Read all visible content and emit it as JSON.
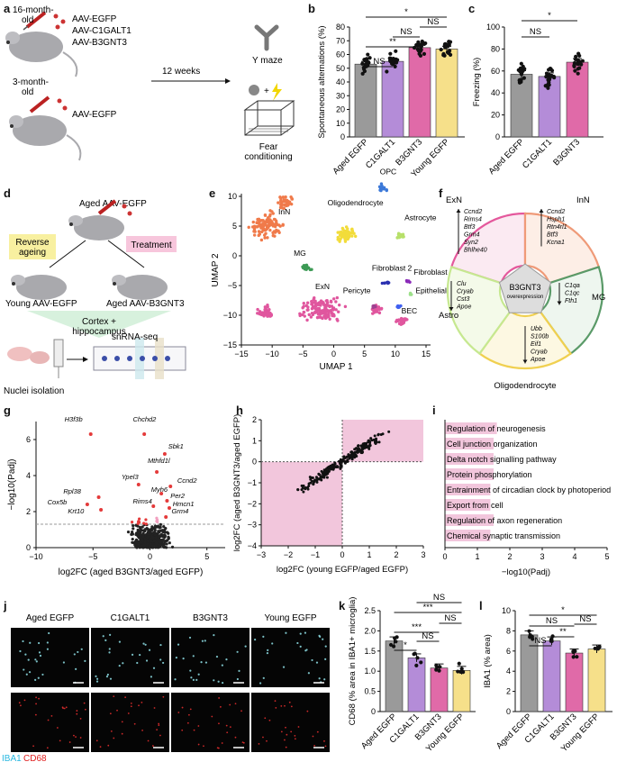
{
  "panels": [
    "a",
    "b",
    "c",
    "d",
    "e",
    "f",
    "g",
    "h",
    "i",
    "j",
    "k",
    "l"
  ],
  "a": {
    "old_label": "16-month-\nold",
    "old_viruses": [
      "AAV-EGFP",
      "AAV-C1GALT1",
      "AAV-B3GNT3"
    ],
    "young_label": "3-month-\nold",
    "young_virus": "AAV-EGFP",
    "time": "12 weeks",
    "test1": "Y maze",
    "test2": "Fear\nconditioning"
  },
  "b": {
    "ylabel": "Spontaneous alternations (%)",
    "yticks": [
      "0",
      "10",
      "20",
      "30",
      "40",
      "50",
      "60",
      "70",
      "80"
    ],
    "categories": [
      "Aged EGFP",
      "C1GALT1",
      "B3GNT3",
      "Young EGFP"
    ],
    "values": [
      53,
      55,
      65,
      64
    ],
    "colors": [
      "#9a9a9a",
      "#b48cd8",
      "#e06aa8",
      "#f6e08a"
    ],
    "sig": [
      "NS",
      "**",
      "NS",
      "*",
      "NS"
    ]
  },
  "c": {
    "ylabel": "Freezing (%)",
    "yticks": [
      "0",
      "20",
      "40",
      "60",
      "80",
      "100"
    ],
    "categories": [
      "Aged EGFP",
      "C1GALT1",
      "B3GNT3"
    ],
    "values": [
      57,
      55,
      68
    ],
    "colors": [
      "#9a9a9a",
      "#b48cd8",
      "#e06aa8"
    ],
    "sig": [
      "NS",
      "*"
    ]
  },
  "d": {
    "top": "Aged AAV-EGFP",
    "reverse": "Reverse\nageing",
    "treatment": "Treatment",
    "young": "Young AAV-EGFP",
    "treated": "Aged AAV-B3GNT3",
    "tissue": "Cortex +\nhippocampus",
    "nuclei": "Nuclei isolation",
    "seq": "snRNA-seq"
  },
  "e": {
    "xlabel": "UMAP 1",
    "ylabel": "UMAP 2",
    "xticks": [
      "−15",
      "−10",
      "−5",
      "0",
      "5",
      "10",
      "15"
    ],
    "yticks": [
      "−15",
      "−10",
      "−5",
      "0",
      "5",
      "10"
    ],
    "clusters": [
      "InN",
      "OPC",
      "Oligodendrocyte",
      "Astrocyte",
      "MG",
      "Fibroblast 2",
      "Fibroblast 1",
      "ExN",
      "Pericyte",
      "Epithelial",
      "BEC"
    ]
  },
  "f": {
    "center": "B3GNT3",
    "center_sub": "overexpression",
    "ExN": {
      "label": "ExN",
      "genes": [
        "Ccnd2",
        "Rims4",
        "Btf3",
        "Grm4",
        "Syn2",
        "Bhlhe40"
      ]
    },
    "InN": {
      "label": "InN",
      "genes": [
        "Ccnd2",
        "Hsph1",
        "Rtn4rl1",
        "Btf3",
        "Kcna1"
      ]
    },
    "MG": {
      "label": "MG",
      "genes": [
        "C1qa",
        "C1qc",
        "Fth1"
      ]
    },
    "Oligo": {
      "label": "Oligodendrocyte",
      "genes": [
        "Ubb",
        "S100b",
        "Eif1",
        "Cryab",
        "Apoe"
      ]
    },
    "Astro": {
      "label": "Astro",
      "genes": [
        "Clu",
        "Cryab",
        "Cst3",
        "Apoe"
      ]
    }
  },
  "g": {
    "ylabel": "−log10(Padj)",
    "xlabel": "log2FC (aged B3GNT3/aged EGFP)",
    "xticks": [
      "−10",
      "−5",
      "0",
      "5"
    ],
    "yticks": [
      "0",
      "2",
      "4",
      "6"
    ],
    "genes": [
      "H3f3b",
      "Chchd2",
      "Sbk1",
      "Mthfd1l",
      "Ypel3",
      "Ccnd2",
      "Myh6",
      "Per2",
      "Rims4",
      "Hmcn1",
      "Grm4",
      "Rpl38",
      "Cox5b",
      "Krt10"
    ]
  },
  "h": {
    "ylabel": "log2FC (aged B3GNT3/aged EGFP)",
    "xlabel": "log2FC (young EGFP/aged EGFP)",
    "xticks": [
      "−3",
      "−2",
      "−1",
      "0",
      "1",
      "2",
      "3"
    ],
    "yticks": [
      "−4",
      "−3",
      "−2",
      "−1",
      "0",
      "1",
      "2"
    ]
  },
  "i": {
    "terms": [
      "Regulation of neurogenesis",
      "Cell junction organization",
      "Delta notch signalling pathway",
      "Protein phosphorylation",
      "Entrainment of circadian clock by photoperiod",
      "Export from cell",
      "Regulation of axon regeneration",
      "Chemical synaptic transmission"
    ],
    "values": [
      1.6,
      1.5,
      1.5,
      1.5,
      1.4,
      1.4,
      1.5,
      1.4
    ],
    "xlabel": "−log10(Padj)",
    "xticks": [
      "0",
      "1",
      "2",
      "3",
      "4",
      "5"
    ]
  },
  "j": {
    "columns": [
      "Aged EGFP",
      "C1GALT1",
      "B3GNT3",
      "Young EGFP"
    ],
    "legend_a": "IBA1",
    "legend_b": "CD68"
  },
  "k": {
    "ylabel": "CD68 (% area in IBA1+ microglia)",
    "yticks": [
      "0",
      "0.5",
      "1.0",
      "1.5",
      "2.0",
      "2.5"
    ],
    "categories": [
      "Aged EGFP",
      "C1GALT1",
      "B3GNT3",
      "Young EGFP"
    ],
    "values": [
      1.75,
      1.33,
      1.08,
      1.02
    ],
    "colors": [
      "#9a9a9a",
      "#b48cd8",
      "#e06aa8",
      "#f6e08a"
    ],
    "sig": [
      "*",
      "NS",
      "***",
      "NS",
      "***",
      "NS"
    ]
  },
  "l": {
    "ylabel": "IBA1 (% area)",
    "yticks": [
      "0",
      "2",
      "4",
      "6",
      "8",
      "10"
    ],
    "categories": [
      "Aged EGFP",
      "C1GALT1",
      "B3GNT3",
      "Young EGFP"
    ],
    "values": [
      7.6,
      7.0,
      5.8,
      6.2
    ],
    "colors": [
      "#9a9a9a",
      "#b48cd8",
      "#e06aa8",
      "#f6e08a"
    ],
    "sig": [
      "NS",
      "**",
      "NS",
      "*",
      "NS"
    ]
  }
}
